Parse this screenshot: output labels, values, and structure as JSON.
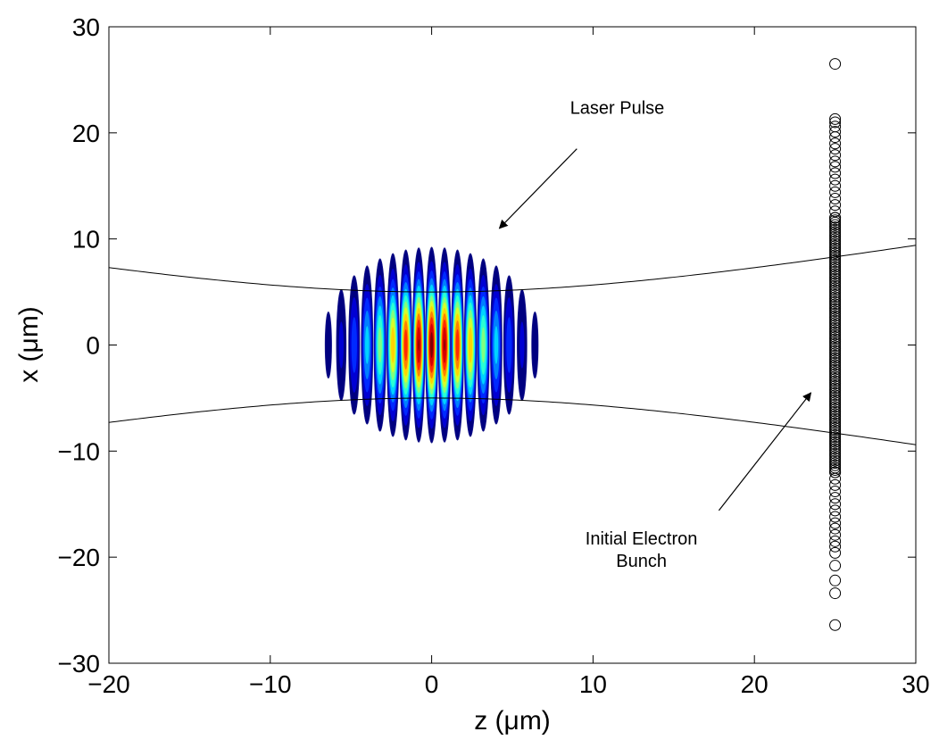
{
  "chart_data": {
    "type": "scatter",
    "title": "",
    "xlabel": "z (μm)",
    "ylabel": "x (μm)",
    "xlim": [
      -20,
      30
    ],
    "ylim": [
      -30,
      30
    ],
    "xticks": [
      -20,
      -10,
      0,
      10,
      20,
      30
    ],
    "yticks": [
      -30,
      -20,
      -10,
      0,
      10,
      20,
      30
    ],
    "xtick_labels": [
      "−20",
      "−10",
      "0",
      "10",
      "20",
      "30"
    ],
    "ytick_labels": [
      "−30",
      "−20",
      "−10",
      "0",
      "10",
      "20",
      "30"
    ],
    "grid": false,
    "laser_pulse": {
      "center_z": 0,
      "center_x": 0,
      "half_length_z": 8,
      "half_width_x": 10,
      "oscillation_period_z": 0.8,
      "colormap": "jet"
    },
    "beam_envelope": {
      "waist": 5,
      "x_at_z_minus20": 7.3,
      "x_at_z_30": 9.4
    },
    "electron_bunch": {
      "z": 25,
      "x": [
        26.5,
        21.3,
        21,
        20.6,
        20.1,
        19.6,
        19,
        18.5,
        17.9,
        17.3,
        16.8,
        16.2,
        15.6,
        15,
        14.4,
        13.8,
        13.2,
        12.6,
        12,
        -12,
        -12.6,
        -13.2,
        -13.8,
        -14.4,
        -15,
        -15.6,
        -16.2,
        -16.8,
        -17.3,
        -17.9,
        -18.5,
        -19,
        -19.6,
        -20.8,
        -22.2,
        -23.4,
        -26.4
      ]
    },
    "annotations": [
      {
        "text": "Laser Pulse",
        "lines": [
          "Laser Pulse"
        ],
        "text_at": [
          11.5,
          21.8
        ],
        "arrow_from": [
          9,
          18.5
        ],
        "arrow_to": [
          4.2,
          11
        ]
      },
      {
        "text": "Initial Electron Bunch",
        "lines": [
          "Initial Electron",
          "Bunch"
        ],
        "text_at": [
          13,
          -18.8
        ],
        "arrow_from": [
          17.8,
          -15.6
        ],
        "arrow_to": [
          23.5,
          -4.5
        ]
      }
    ]
  }
}
